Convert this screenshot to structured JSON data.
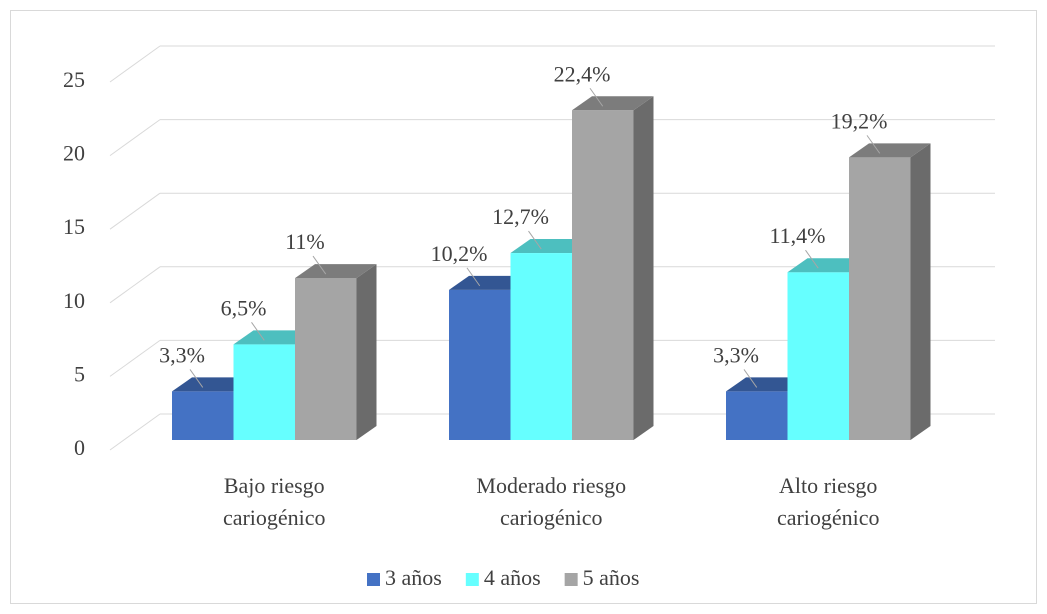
{
  "chart_data": {
    "type": "bar3d",
    "categories": [
      "Bajo riesgo cariogénico",
      "Moderado riesgo cariogénico",
      "Alto riesgo cariogénico"
    ],
    "series": [
      {
        "name": "3 años",
        "color": "#4472c4",
        "values": [
          3.3,
          10.2,
          3.3
        ],
        "value_labels": [
          "3,3%",
          "10,2%",
          "3,3%"
        ]
      },
      {
        "name": "4 años",
        "color": "#66ffff",
        "values": [
          6.5,
          12.7,
          11.4
        ],
        "value_labels": [
          "6,5%",
          "12,7%",
          "11,4%"
        ]
      },
      {
        "name": "5 años",
        "color": "#a5a5a5",
        "values": [
          11,
          22.4,
          19.2
        ],
        "value_labels": [
          "11%",
          "22,4%",
          "19,2%"
        ]
      }
    ],
    "ylim": [
      0,
      25
    ],
    "yticks": [
      0,
      5,
      10,
      15,
      20,
      25
    ],
    "grid": true,
    "legend": "bottom"
  }
}
